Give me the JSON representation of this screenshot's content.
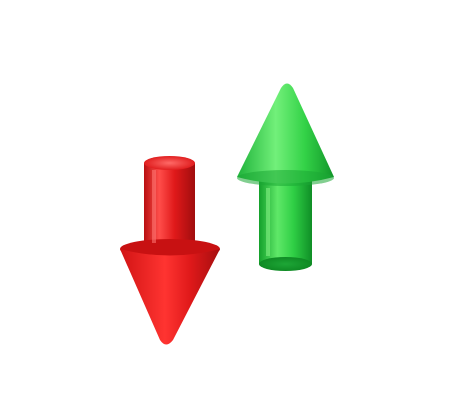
{
  "scene": {
    "background_color": "#ffffff",
    "objects": [
      {
        "name": "down-arrow",
        "direction": "down",
        "color": "#e0191a",
        "shade_color": "#b90f10",
        "highlight_color": "#ff5b57"
      },
      {
        "name": "up-arrow",
        "direction": "up",
        "color": "#2fcf45",
        "shade_color": "#16a52e",
        "highlight_color": "#7ff27d"
      }
    ]
  }
}
